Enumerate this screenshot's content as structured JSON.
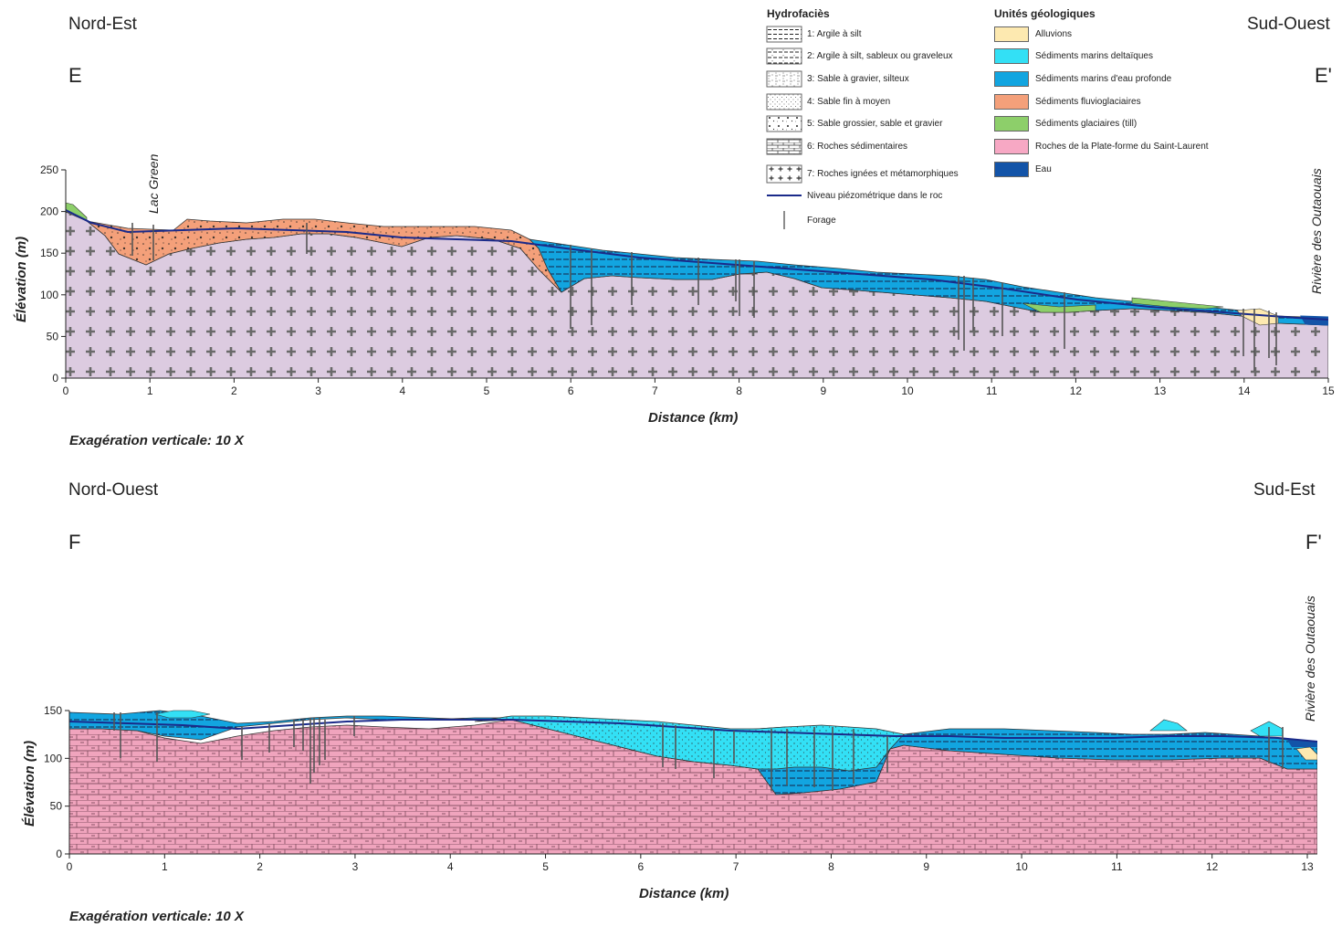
{
  "section_e": {
    "dir_left": "Nord-Est",
    "dir_right": "Sud-Ouest",
    "label_left": "E",
    "label_right": "E'",
    "ylabel": "Élévation (m)",
    "xlabel": "Distance (km)",
    "exaggeration": "Exagération verticale: 10 X",
    "annotation_lake": "Lac Green",
    "annotation_river": "Rivière des Outaouais",
    "xticks": [
      "0",
      "1",
      "2",
      "3",
      "4",
      "5",
      "6",
      "7",
      "8",
      "9",
      "10",
      "11",
      "12",
      "13",
      "14",
      "15"
    ],
    "yticks": [
      "0",
      "50",
      "100",
      "150",
      "200",
      "250"
    ]
  },
  "section_f": {
    "dir_left": "Nord-Ouest",
    "dir_right": "Sud-Est",
    "label_left": "F",
    "label_right": "F'",
    "ylabel": "Élévation (m)",
    "xlabel": "Distance (km)",
    "exaggeration": "Exagération verticale: 10 X",
    "annotation_river": "Rivière des Outaouais",
    "xticks": [
      "0",
      "1",
      "2",
      "3",
      "4",
      "5",
      "6",
      "7",
      "8",
      "9",
      "10",
      "11",
      "12",
      "13"
    ],
    "yticks": [
      "0",
      "50",
      "100",
      "150"
    ]
  },
  "legend": {
    "hydrofacies_title": "Hydrofaciès",
    "hydrofacies": [
      {
        "label": "1: Argile à silt",
        "pattern": "clay"
      },
      {
        "label": "2: Argile à silt, sableux ou graveleux",
        "pattern": "sandy-clay"
      },
      {
        "label": "3: Sable à gravier, silteux",
        "pattern": "silty-sand"
      },
      {
        "label": "4: Sable fin à moyen",
        "pattern": "fine-sand"
      },
      {
        "label": "5: Sable grossier, sable et gravier",
        "pattern": "gravel"
      },
      {
        "label": "6: Roches sédimentaires",
        "pattern": "brick"
      },
      {
        "label": "7: Roches ignées et métamorphiques",
        "pattern": "cross"
      }
    ],
    "piezo_label": "Niveau piézométrique dans le roc",
    "borehole_label": "Forage",
    "units_title": "Unités géologiques",
    "units": [
      {
        "label": "Alluvions",
        "color": "#fde9b0"
      },
      {
        "label": "Sédiments marins deltaïques",
        "color": "#33e0f5"
      },
      {
        "label": "Sédiments marins d'eau profonde",
        "color": "#12a5e0"
      },
      {
        "label": "Sédiments fluvioglaciaires",
        "color": "#f4a07a"
      },
      {
        "label": "Sédiments glaciaires (till)",
        "color": "#8dcf6a"
      },
      {
        "label": "Roches de la Plate-forme du Saint-Laurent",
        "color": "#f7a8c4"
      },
      {
        "label": "Eau",
        "color": "#1354a8"
      }
    ]
  },
  "colors": {
    "bedrock_igneous": "#dccbe0",
    "bedrock_sedimentary": "#f0a4bd",
    "piezo_line": "#1a2a8a"
  }
}
